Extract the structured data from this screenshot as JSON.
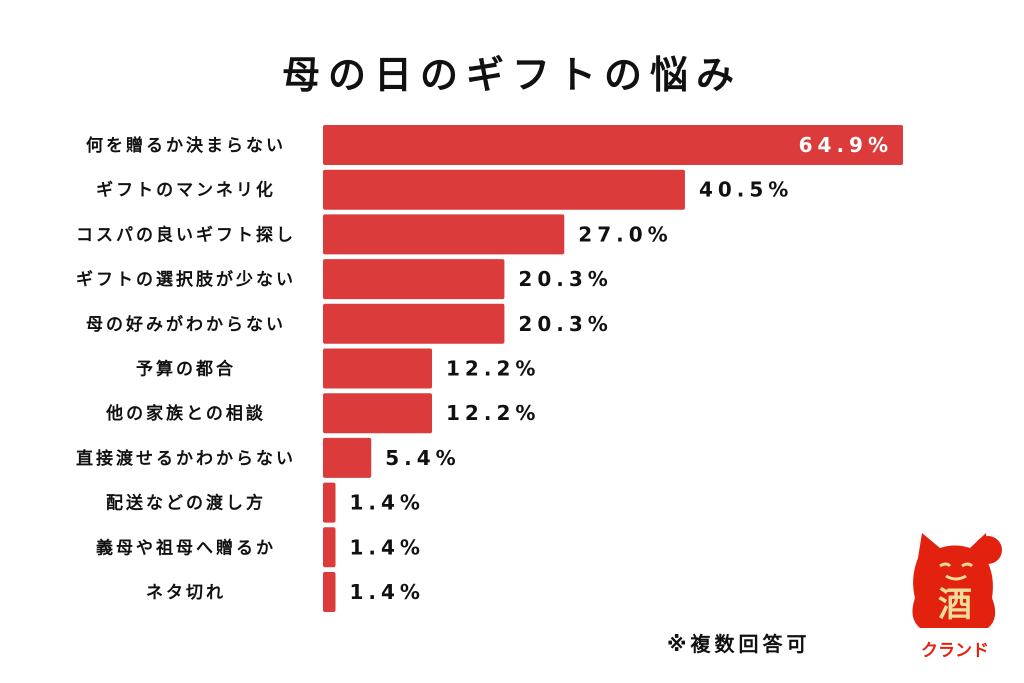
{
  "chart_data": {
    "type": "bar",
    "orientation": "horizontal",
    "title": "母の日のギフトの悩み",
    "categories": [
      "何を贈るか決まらない",
      "ギフトのマンネリ化",
      "コスパの良いギフト探し",
      "ギフトの選択肢が少ない",
      "母の好みがわからない",
      "予算の都合",
      "他の家族との相談",
      "直接渡せるかわからない",
      "配送などの渡し方",
      "義母や祖母へ贈るか",
      "ネタ切れ"
    ],
    "values": [
      64.9,
      40.5,
      27.0,
      20.3,
      20.3,
      12.2,
      12.2,
      5.4,
      1.4,
      1.4,
      1.4
    ],
    "value_labels": [
      "64.9%",
      "40.5%",
      "27.0%",
      "20.3%",
      "20.3%",
      "12.2%",
      "12.2%",
      "5.4%",
      "1.4%",
      "1.4%",
      "1.4%"
    ],
    "xlabel": "",
    "ylabel": "",
    "xlim": [
      0,
      64.9
    ],
    "bar_color": "#dc3b3b",
    "grid": false,
    "note": "※複数回答可"
  },
  "logo": {
    "kanji": "酒",
    "text": "クランド",
    "color": "#e3210f",
    "accent": "#f0dc9a"
  }
}
